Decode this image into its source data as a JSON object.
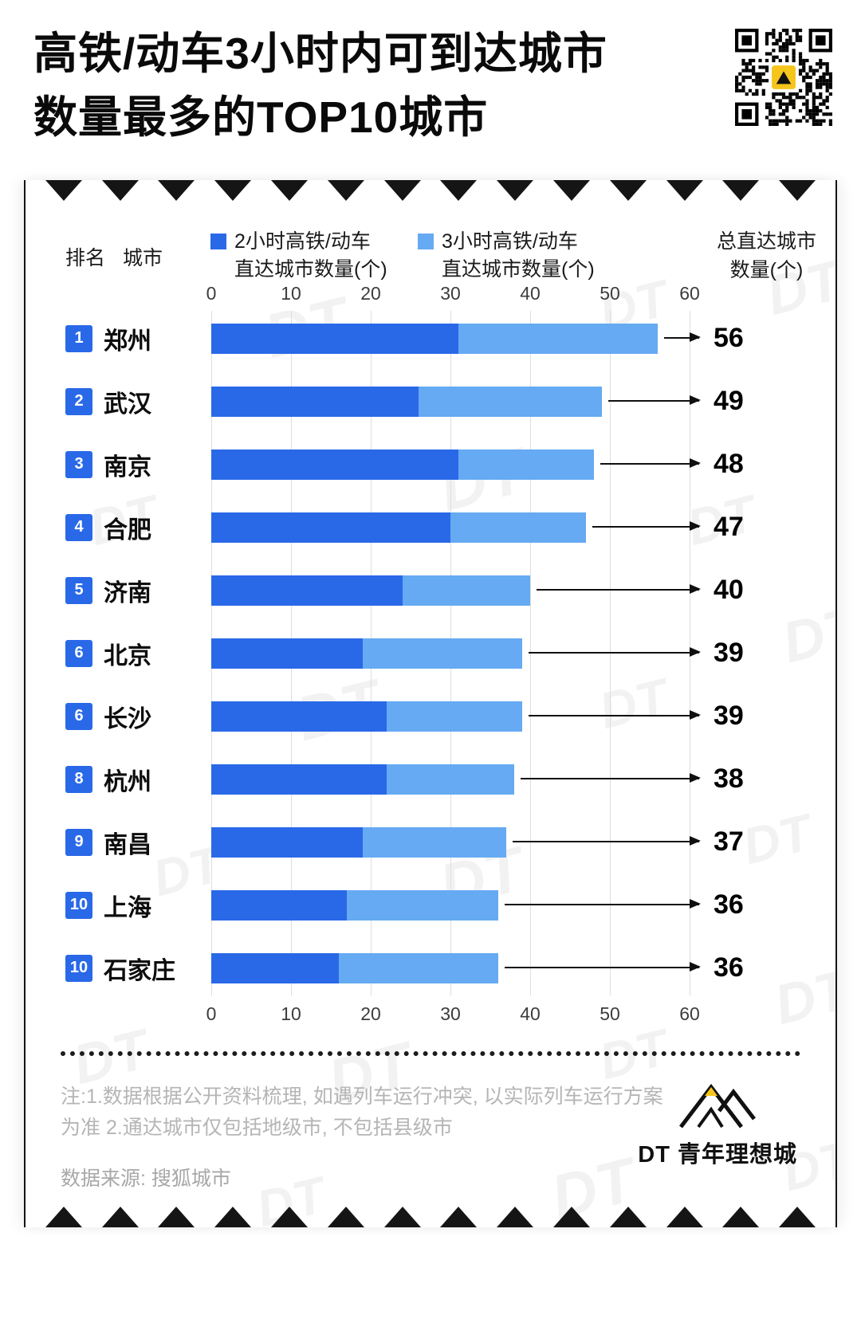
{
  "title": {
    "line1": "高铁/动车3小时内可到达城市",
    "line2": "数量最多的TOP10城市"
  },
  "header": {
    "rank_label": "排名",
    "city_label": "城市",
    "total_label_line1": "总直达城市",
    "total_label_line2": "数量(个)"
  },
  "legend": [
    {
      "line1": "2小时高铁/动车",
      "line2": "直达城市数量(个)",
      "color": "#2969E8"
    },
    {
      "line1": "3小时高铁/动车",
      "line2": "直达城市数量(个)",
      "color": "#65AAF2"
    }
  ],
  "axis": {
    "ticks": [
      0,
      10,
      20,
      30,
      40,
      50,
      60
    ],
    "max": 60
  },
  "chart_data": {
    "type": "bar",
    "orientation": "horizontal",
    "stacked": true,
    "title": "高铁/动车3小时内可到达城市数量最多的TOP10城市",
    "categories": [
      "郑州",
      "武汉",
      "南京",
      "合肥",
      "济南",
      "北京",
      "长沙",
      "杭州",
      "南昌",
      "上海",
      "石家庄"
    ],
    "ranks": [
      "1",
      "2",
      "3",
      "4",
      "5",
      "6",
      "6",
      "8",
      "9",
      "10",
      "10"
    ],
    "series": [
      {
        "name": "2小时高铁/动车直达城市数量(个)",
        "color": "#2969E8",
        "values": [
          31,
          26,
          31,
          30,
          24,
          19,
          22,
          22,
          19,
          17,
          16
        ]
      },
      {
        "name": "3小时高铁/动车直达城市数量(个)",
        "color": "#65AAF2",
        "values": [
          25,
          23,
          17,
          17,
          16,
          20,
          17,
          16,
          18,
          19,
          20
        ]
      }
    ],
    "totals": [
      56,
      49,
      48,
      47,
      40,
      39,
      39,
      38,
      37,
      36,
      36
    ],
    "xlim": [
      0,
      60
    ],
    "grid": true,
    "legend_position": "top"
  },
  "notes": {
    "line1": "注:1.数据根据公开资料梳理, 如遇列车运行冲突, 以实际列车运行方案",
    "line2": "为准 2.通达城市仅包括地级市, 不包括县级市"
  },
  "source": "数据来源: 搜狐城市",
  "branding": {
    "logo_text": "DT 青年理想城",
    "watermark": "DT"
  },
  "colors": {
    "primary_blue": "#2969E8",
    "light_blue": "#65AAF2",
    "accent_yellow": "#F6C51C",
    "line_black": "#101010"
  }
}
